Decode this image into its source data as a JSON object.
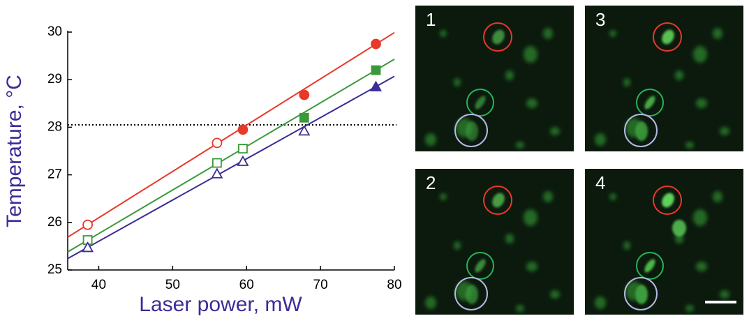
{
  "chart_data": {
    "type": "scatter",
    "xlabel": "Laser power, mW",
    "ylabel": "Temperature, °C",
    "xlim": [
      35.8,
      80
    ],
    "ylim": [
      25,
      30
    ],
    "xticks": [
      40,
      50,
      60,
      70,
      80
    ],
    "yticks": [
      25,
      26,
      27,
      28,
      29,
      30
    ],
    "x": [
      38.5,
      56,
      59.5,
      67.8,
      77.5
    ],
    "series": [
      {
        "color": "#e8382a",
        "marker": "circle",
        "values": [
          25.95,
          27.67,
          27.95,
          28.68,
          29.75
        ],
        "filled": [
          false,
          false,
          true,
          true,
          true
        ]
      },
      {
        "color": "#3a9a3a",
        "marker": "square",
        "values": [
          25.63,
          27.25,
          27.55,
          28.2,
          29.2
        ],
        "filled": [
          false,
          false,
          false,
          true,
          true
        ]
      },
      {
        "color": "#3a2d96",
        "marker": "triangle",
        "values": [
          25.47,
          27.02,
          27.28,
          27.92,
          28.85
        ],
        "filled": [
          false,
          false,
          false,
          false,
          true
        ]
      }
    ],
    "fits": [
      {
        "color": "#e8382a",
        "x": [
          35.8,
          80
        ],
        "values": [
          25.69,
          29.99
        ]
      },
      {
        "color": "#3a9a3a",
        "x": [
          35.8,
          80
        ],
        "values": [
          25.38,
          29.43
        ]
      },
      {
        "color": "#3a2d96",
        "x": [
          35.8,
          80
        ],
        "values": [
          25.24,
          29.07
        ]
      }
    ],
    "hline": 28.05
  },
  "panels": [
    {
      "label": "1"
    },
    {
      "label": "3"
    },
    {
      "label": "2"
    },
    {
      "label": "4"
    }
  ]
}
